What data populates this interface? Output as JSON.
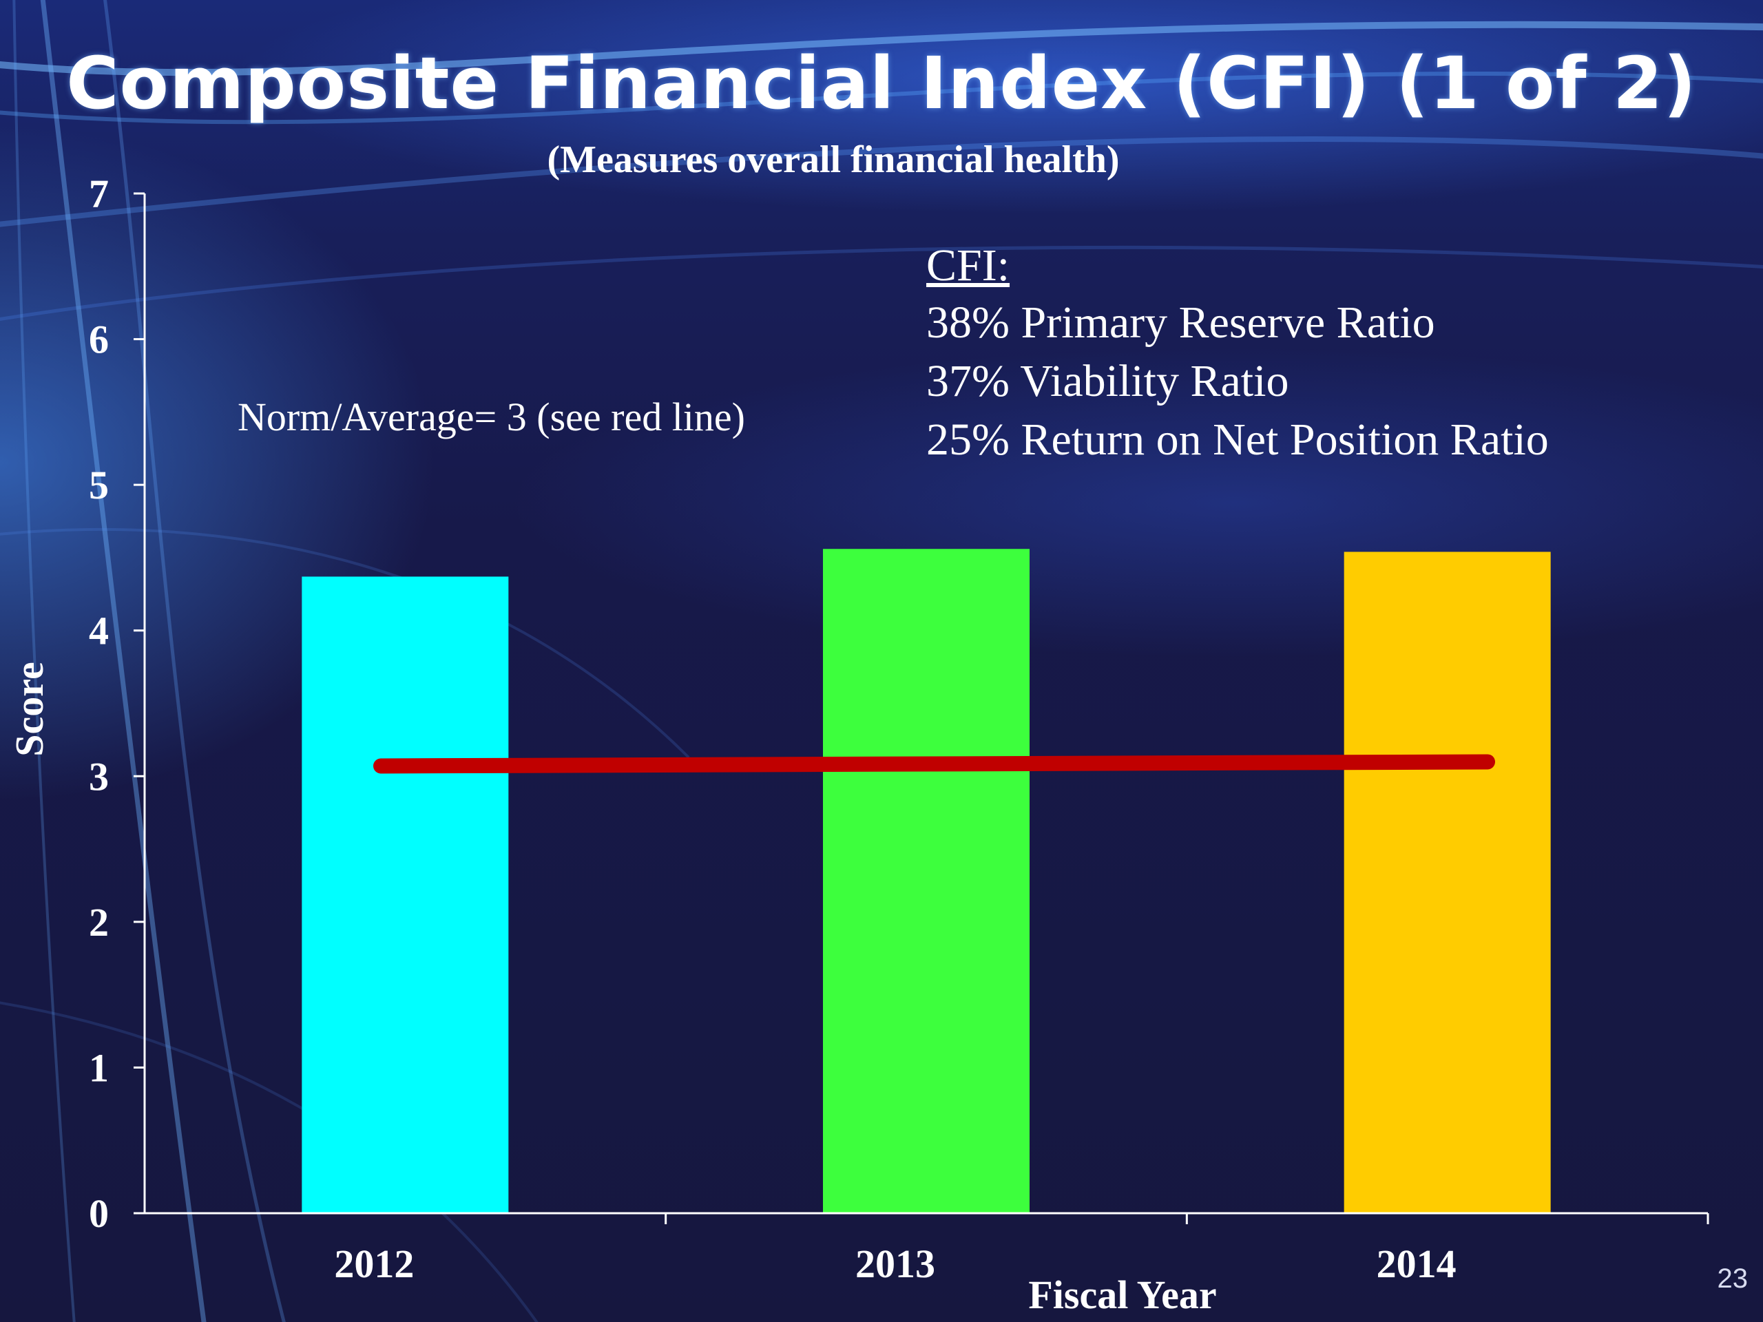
{
  "slide": {
    "title": "Composite Financial Index (CFI) (1 of 2)",
    "subtitle": "(Measures overall financial health)",
    "page_number": "23"
  },
  "annotations": {
    "norm": "Norm/Average=  3 (see red line)",
    "cfi_heading": "CFI:",
    "cfi_components": [
      "38% Primary Reserve Ratio",
      "37% Viability Ratio",
      "25% Return on Net Position Ratio"
    ]
  },
  "chart_data": {
    "type": "bar",
    "categories": [
      "2012",
      "2013",
      "2014"
    ],
    "values": [
      4.37,
      4.56,
      4.54
    ],
    "colors": [
      "#00ffff",
      "#3dff3d",
      "#ffcc00"
    ],
    "xlabel": "Fiscal Year",
    "ylabel": "Score",
    "ylim": [
      0,
      7
    ],
    "yticks": [
      "0",
      "1",
      "2",
      "3",
      "4",
      "5",
      "6",
      "7"
    ],
    "reference_line": {
      "value": 3.07,
      "color": "#c00000"
    },
    "grid": false,
    "legend": "none"
  },
  "colors": {
    "background": "#16173f",
    "text": "#ffffff",
    "axis": "#ffffff"
  }
}
